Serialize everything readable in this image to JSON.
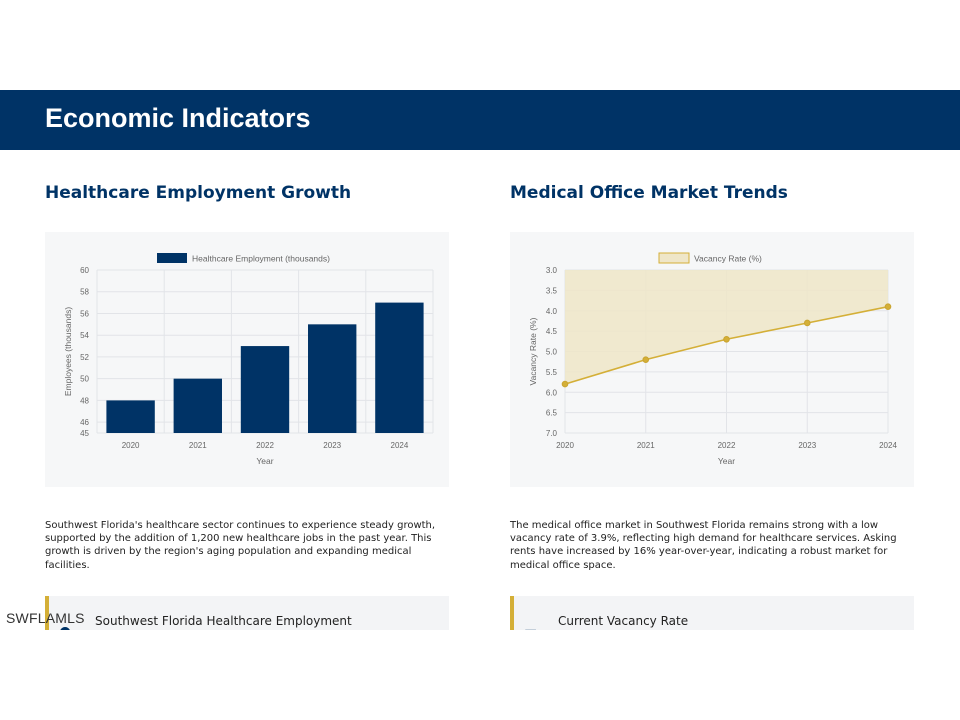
{
  "header": {
    "title": "Economic Indicators"
  },
  "logo": {
    "text": "SWFLAMLS"
  },
  "left": {
    "title": "Healthcare Employment Growth",
    "description": " Southwest Florida's healthcare sector continues to experience steady growth, supported by the addition of 1,200 new healthcare jobs in the past year. This growth is driven by the region's aging population and expanding medical facilities.",
    "card_label": "Southwest Florida Healthcare Employment"
  },
  "right": {
    "title": "Medical Office Market Trends",
    "description": " The medical office market in Southwest Florida remains strong with a low vacancy rate of 3.9%, reflecting high demand for healthcare services. Asking rents have increased by 16% year-over-year, indicating a robust market for medical office space.",
    "card_label": "Current Vacancy Rate"
  },
  "colors": {
    "primary": "#003366",
    "gold": "#d4af37",
    "gold_fill": "#efe6c8"
  },
  "chart_data": [
    {
      "type": "bar",
      "categories": [
        "2020",
        "2021",
        "2022",
        "2023",
        "2024"
      ],
      "series": [
        {
          "name": "Healthcare Employment (thousands)",
          "values": [
            48,
            50,
            53,
            55,
            57
          ]
        }
      ],
      "xlabel": "Year",
      "ylabel": "Employees (thousands)",
      "ylim": [
        45,
        60
      ],
      "yticks": [
        "45",
        "46",
        "48",
        "50",
        "52",
        "54",
        "56",
        "58",
        "60"
      ],
      "legend": "top",
      "grid": true
    },
    {
      "type": "area",
      "categories": [
        "2020",
        "2021",
        "2022",
        "2023",
        "2024"
      ],
      "series": [
        {
          "name": "Vacancy Rate (%)",
          "values": [
            5.8,
            5.2,
            4.7,
            4.3,
            3.9
          ]
        }
      ],
      "xlabel": "Year",
      "ylabel": "Vacancy Rate (%)",
      "ylim": [
        3.0,
        7.0
      ],
      "y_reversed": true,
      "yticks": [
        "3.0",
        "3.5",
        "4.0",
        "4.5",
        "5.0",
        "5.5",
        "6.0",
        "6.5",
        "7.0"
      ],
      "legend": "top",
      "grid": true
    }
  ]
}
